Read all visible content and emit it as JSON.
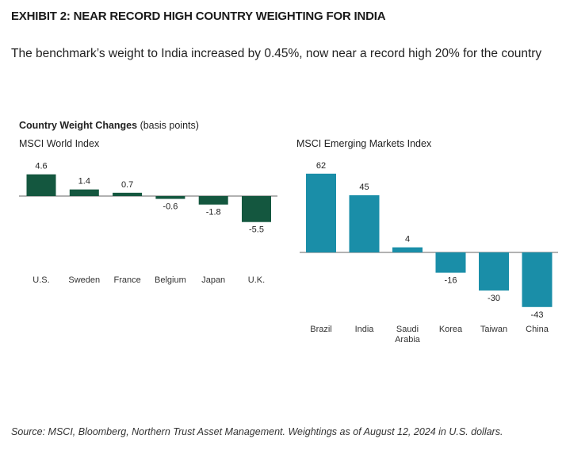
{
  "exhibit_title": "EXHIBIT 2: NEAR RECORD HIGH COUNTRY WEIGHTING FOR INDIA",
  "intro_text": "The benchmark’s weight to India increased by 0.45%, now near a record high 20% for the country",
  "chart_heading": {
    "bold": "Country Weight Changes",
    "rest": " (basis points)"
  },
  "source": "Source: MSCI, Bloomberg, Northern Trust Asset Management. Weightings as of August 12, 2024 in U.S. dollars.",
  "chart_data": [
    {
      "type": "bar",
      "title": "MSCI World Index",
      "unit": "basis points",
      "categories": [
        "U.S.",
        "Sweden",
        "France",
        "Belgium",
        "Japan",
        "U.K."
      ],
      "values": [
        4.6,
        1.4,
        0.7,
        -0.6,
        -1.8,
        -5.5
      ],
      "labels": [
        "4.6",
        "1.4",
        "0.7",
        "-0.6",
        "-1.8",
        "-5.5"
      ],
      "ylim": [
        -5.5,
        4.6
      ],
      "color": "#14573f",
      "grid": false,
      "legend": "none"
    },
    {
      "type": "bar",
      "title": "MSCI Emerging Markets Index",
      "unit": "basis points",
      "categories": [
        "Brazil",
        "India",
        "Saudi Arabia",
        "Korea",
        "Taiwan",
        "China"
      ],
      "values": [
        62,
        45,
        4,
        -16,
        -30,
        -43
      ],
      "labels": [
        "62",
        "45",
        "4",
        "-16",
        "-30",
        "-43"
      ],
      "ylim": [
        -43,
        62
      ],
      "color": "#1a8ea8",
      "grid": false,
      "legend": "none"
    }
  ]
}
